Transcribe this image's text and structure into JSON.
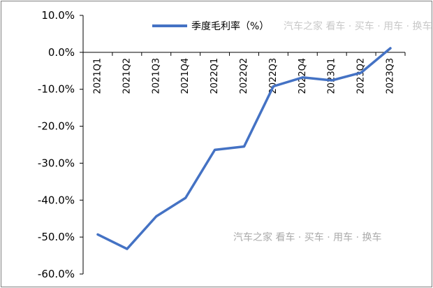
{
  "chart_data": {
    "type": "line",
    "categories": [
      "2021Q1",
      "2021Q2",
      "2021Q3",
      "2021Q4",
      "2022Q1",
      "2022Q2",
      "2022Q3",
      "2022Q4",
      "2023Q1",
      "2023Q2",
      "2023Q3"
    ],
    "series": [
      {
        "name": "季度毛利率（%）",
        "values": [
          -49.3,
          -53.2,
          -44.4,
          -39.4,
          -26.4,
          -25.5,
          -9.2,
          -6.8,
          -7.6,
          -5.5,
          1.1
        ],
        "color": "#4472c4"
      }
    ],
    "yticks": [
      "10.0%",
      "0.0%",
      "-10.0%",
      "-20.0%",
      "-30.0%",
      "-40.0%",
      "-50.0%",
      "-60.0%"
    ],
    "ylim": [
      -60,
      10
    ],
    "legend_position": "top-right",
    "grid": false
  },
  "watermark": {
    "top": "汽车之家 看车 · 买车 · 用车 · 换车",
    "bottom": "汽车之家 看车 · 买车 · 用车 · 换车"
  }
}
